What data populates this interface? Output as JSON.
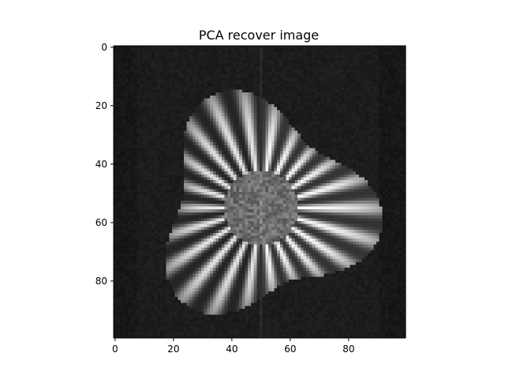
{
  "chart_data": {
    "type": "heatmap",
    "title": "PCA recover image",
    "image_size": [
      100,
      100
    ],
    "colormap": "gray",
    "xlim": [
      -0.5,
      99.5
    ],
    "ylim": [
      99.5,
      -0.5
    ],
    "x_ticks": [
      0,
      20,
      40,
      60,
      80
    ],
    "y_ticks": [
      0,
      20,
      40,
      60,
      80
    ],
    "background_intensity": 0.11,
    "flower": {
      "center": [
        50,
        55
      ],
      "disc_radius": 13,
      "petal_outer_radius": 42,
      "petal_count": 22,
      "seam_column": 50
    },
    "grid": false,
    "legend": "none"
  }
}
